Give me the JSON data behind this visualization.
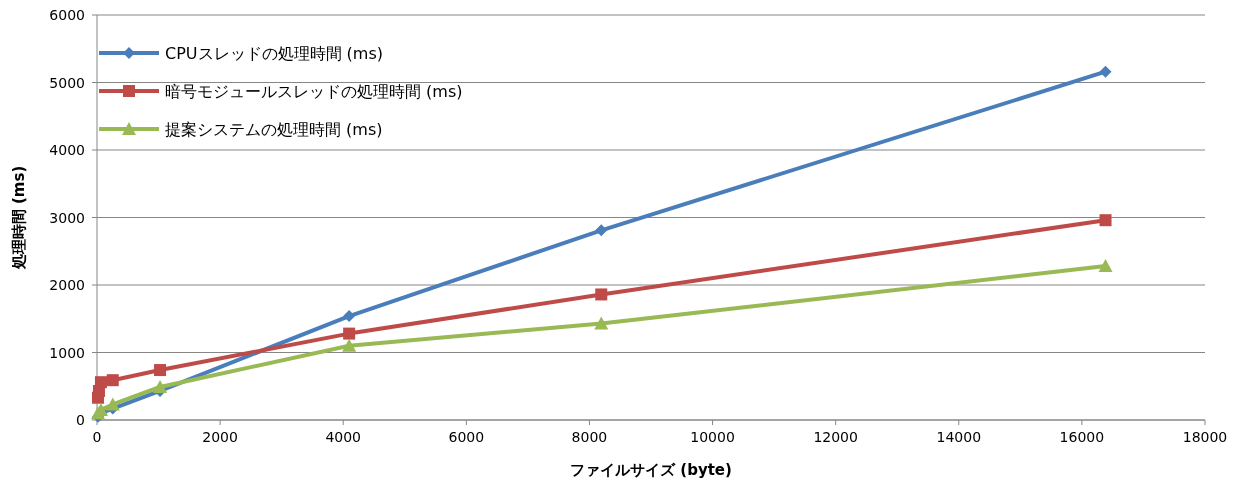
{
  "chart_data": {
    "type": "line",
    "xlabel": "ファイルサイズ (byte)",
    "ylabel": "処理時間 (ms)",
    "xlim": [
      0,
      18000
    ],
    "xticks": [
      0,
      2000,
      4000,
      6000,
      8000,
      10000,
      12000,
      14000,
      16000,
      18000
    ],
    "ylim": [
      0,
      6000
    ],
    "yticks": [
      0,
      1000,
      2000,
      3000,
      4000,
      5000,
      6000
    ],
    "grid": "y",
    "legend": "top left",
    "series": [
      {
        "name": "CPUスレッドの処理時間 (ms)",
        "color": "#4a7ebb",
        "marker": "diamond",
        "x": [
          16,
          64,
          256,
          1024,
          4096,
          8192,
          16384
        ],
        "values": [
          50,
          100,
          170,
          430,
          1540,
          2810,
          5160
        ]
      },
      {
        "name": "暗号モジュールスレッドの処理時間 (ms)",
        "color": "#be4b48",
        "marker": "square",
        "x": [
          16,
          32,
          64,
          256,
          1024,
          4096,
          8192,
          16384
        ],
        "values": [
          330,
          430,
          560,
          590,
          740,
          1280,
          1860,
          2960
        ]
      },
      {
        "name": "提案システムの処理時間 (ms)",
        "color": "#98b954",
        "marker": "triangle",
        "x": [
          16,
          64,
          256,
          1024,
          4096,
          8192,
          16384
        ],
        "values": [
          100,
          150,
          230,
          490,
          1100,
          1430,
          2280
        ]
      }
    ]
  }
}
